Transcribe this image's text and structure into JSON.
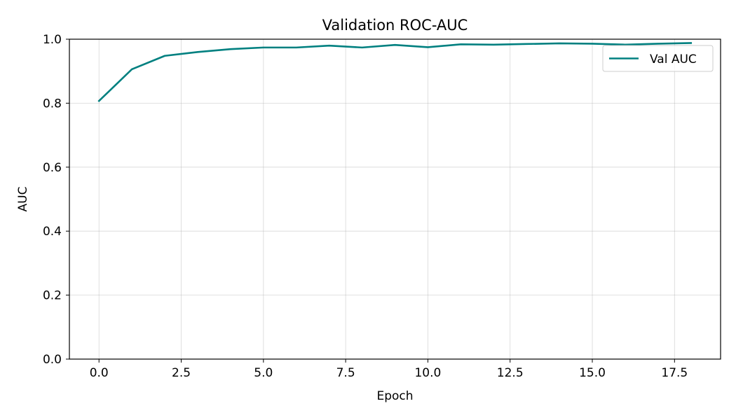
{
  "chart_data": {
    "type": "line",
    "title": "Validation ROC-AUC",
    "xlabel": "Epoch",
    "ylabel": "AUC",
    "xlim": [
      -0.9,
      18.9
    ],
    "ylim": [
      0.0,
      1.0
    ],
    "xticks": [
      0.0,
      2.5,
      5.0,
      7.5,
      10.0,
      12.5,
      15.0,
      17.5
    ],
    "xtick_labels": [
      "0.0",
      "2.5",
      "5.0",
      "7.5",
      "10.0",
      "12.5",
      "15.0",
      "17.5"
    ],
    "yticks": [
      0.0,
      0.2,
      0.4,
      0.6,
      0.8,
      1.0
    ],
    "ytick_labels": [
      "0.0",
      "0.2",
      "0.4",
      "0.6",
      "0.8",
      "1.0"
    ],
    "grid": true,
    "legend_position": "top-right",
    "series": [
      {
        "name": "Val AUC",
        "color": "#008080",
        "x": [
          0,
          1,
          2,
          3,
          4,
          5,
          6,
          7,
          8,
          9,
          10,
          11,
          12,
          13,
          14,
          15,
          16,
          17,
          18
        ],
        "y": [
          0.807,
          0.906,
          0.948,
          0.96,
          0.969,
          0.974,
          0.974,
          0.98,
          0.974,
          0.982,
          0.975,
          0.984,
          0.983,
          0.985,
          0.987,
          0.986,
          0.983,
          0.986,
          0.988
        ]
      }
    ]
  }
}
